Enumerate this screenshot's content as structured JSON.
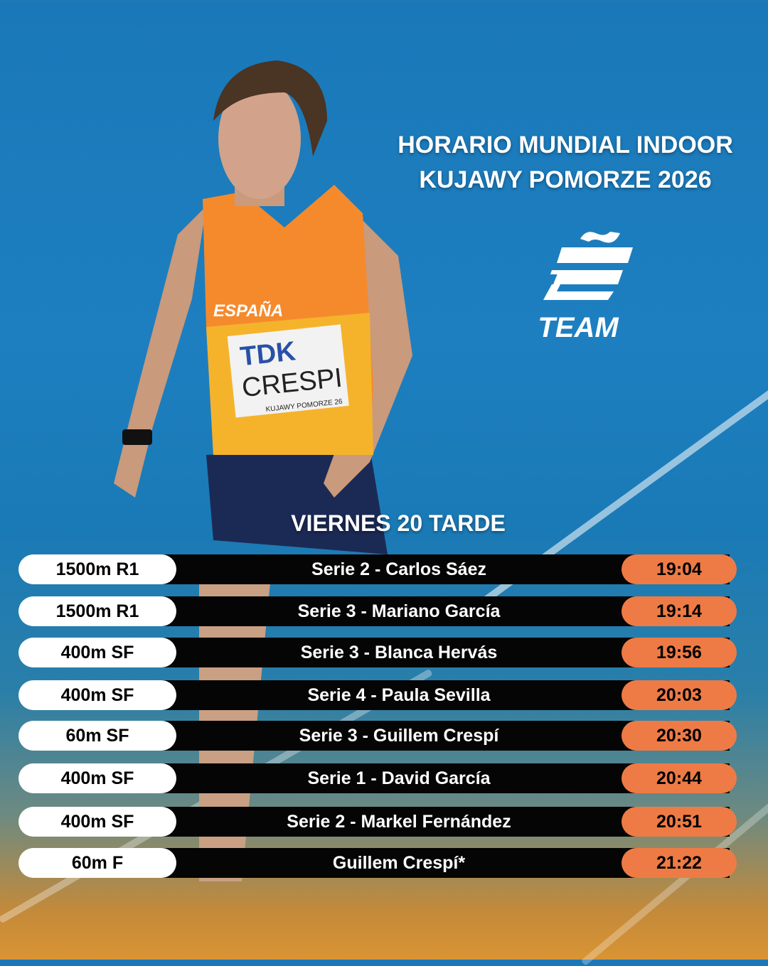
{
  "title": {
    "line1": "HORARIO MUNDIAL INDOOR",
    "line2": "KUJAWY POMORZE 2026"
  },
  "logo": {
    "text": "TEAM",
    "mark": "Ẽ"
  },
  "athlete_photo": {
    "jersey_text": "ESPAÑA",
    "bib_sponsor": "TDK",
    "bib_name": "CRESPI",
    "bib_event": "KUJAWY POMORZE 26"
  },
  "day": "VIERNES 20 TARDE",
  "colors": {
    "accent": "#ee7b45",
    "background": "#1a78b8",
    "bar": "#050505"
  },
  "schedule": [
    {
      "event": "1500m R1",
      "athlete": "Serie 2 - Carlos Sáez",
      "time": "19:04"
    },
    {
      "event": "1500m R1",
      "athlete": "Serie 3 - Mariano García",
      "time": "19:14"
    },
    {
      "event": "400m SF",
      "athlete": "Serie 3 - Blanca Hervás",
      "time": "19:56"
    },
    {
      "event": "400m SF",
      "athlete": "Serie 4 - Paula Sevilla",
      "time": "20:03"
    },
    {
      "event": "60m SF",
      "athlete": "Serie 3 - Guillem Crespí",
      "time": "20:30"
    },
    {
      "event": "400m SF",
      "athlete": "Serie 1 - David García",
      "time": "20:44"
    },
    {
      "event": "400m SF",
      "athlete": "Serie 2 - Markel Fernández",
      "time": "20:51"
    },
    {
      "event": "60m F",
      "athlete": "Guillem Crespí*",
      "time": "21:22"
    }
  ]
}
